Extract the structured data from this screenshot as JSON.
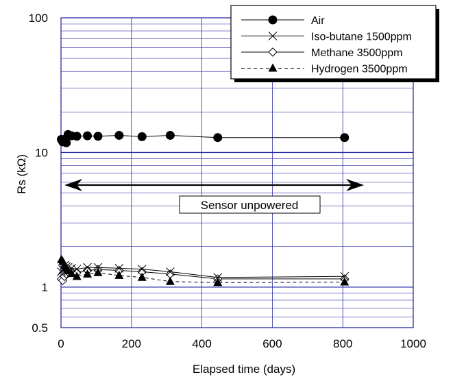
{
  "chart_data": {
    "type": "scatter",
    "title": "",
    "xlabel": "Elapsed time (days)",
    "ylabel": "Rs (kΩ)",
    "xlim": [
      0,
      1000
    ],
    "ylim": [
      0.5,
      100
    ],
    "yscale": "log",
    "x_ticks": [
      "0",
      "200",
      "400",
      "600",
      "800",
      "1000"
    ],
    "y_ticks": [
      "0.5",
      "1",
      "10",
      "100"
    ],
    "grid": true,
    "legend_position": "top-right",
    "annotation": "Sensor unpowered",
    "annotation_range": [
      10,
      860
    ],
    "series": [
      {
        "name": "Air",
        "marker": "filled-circle",
        "line": "solid",
        "x": [
          1,
          5,
          10,
          15,
          20,
          30,
          45,
          75,
          105,
          165,
          230,
          310,
          445,
          805
        ],
        "y": [
          12.5,
          12.0,
          12.5,
          11.8,
          13.6,
          13.3,
          13.2,
          13.3,
          13.2,
          13.4,
          13.1,
          13.4,
          12.9,
          12.9
        ]
      },
      {
        "name": "Iso-butane 1500ppm",
        "marker": "x",
        "line": "solid",
        "x": [
          1,
          5,
          10,
          15,
          20,
          30,
          45,
          75,
          105,
          165,
          230,
          310,
          445,
          805
        ],
        "y": [
          1.3,
          1.35,
          1.45,
          1.42,
          1.4,
          1.38,
          1.36,
          1.4,
          1.4,
          1.38,
          1.36,
          1.3,
          1.18,
          1.2
        ]
      },
      {
        "name": "Methane 3500ppm",
        "marker": "open-diamond",
        "line": "solid",
        "x": [
          1,
          5,
          10,
          15,
          20,
          30,
          45,
          75,
          105,
          165,
          230,
          310,
          445,
          805
        ],
        "y": [
          1.15,
          1.12,
          1.2,
          1.25,
          1.3,
          1.3,
          1.28,
          1.33,
          1.35,
          1.33,
          1.3,
          1.25,
          1.15,
          1.15
        ]
      },
      {
        "name": "Hydrogen 3500ppm",
        "marker": "filled-triangle",
        "line": "dashed",
        "x": [
          1,
          5,
          10,
          15,
          20,
          30,
          45,
          75,
          105,
          165,
          230,
          310,
          445,
          805
        ],
        "y": [
          1.6,
          1.55,
          1.45,
          1.38,
          1.32,
          1.26,
          1.2,
          1.25,
          1.28,
          1.22,
          1.18,
          1.1,
          1.08,
          1.09
        ]
      }
    ]
  },
  "colors": {
    "grid": "#2b2ba8",
    "frame": "#2b2ba8",
    "ink": "#000000"
  }
}
